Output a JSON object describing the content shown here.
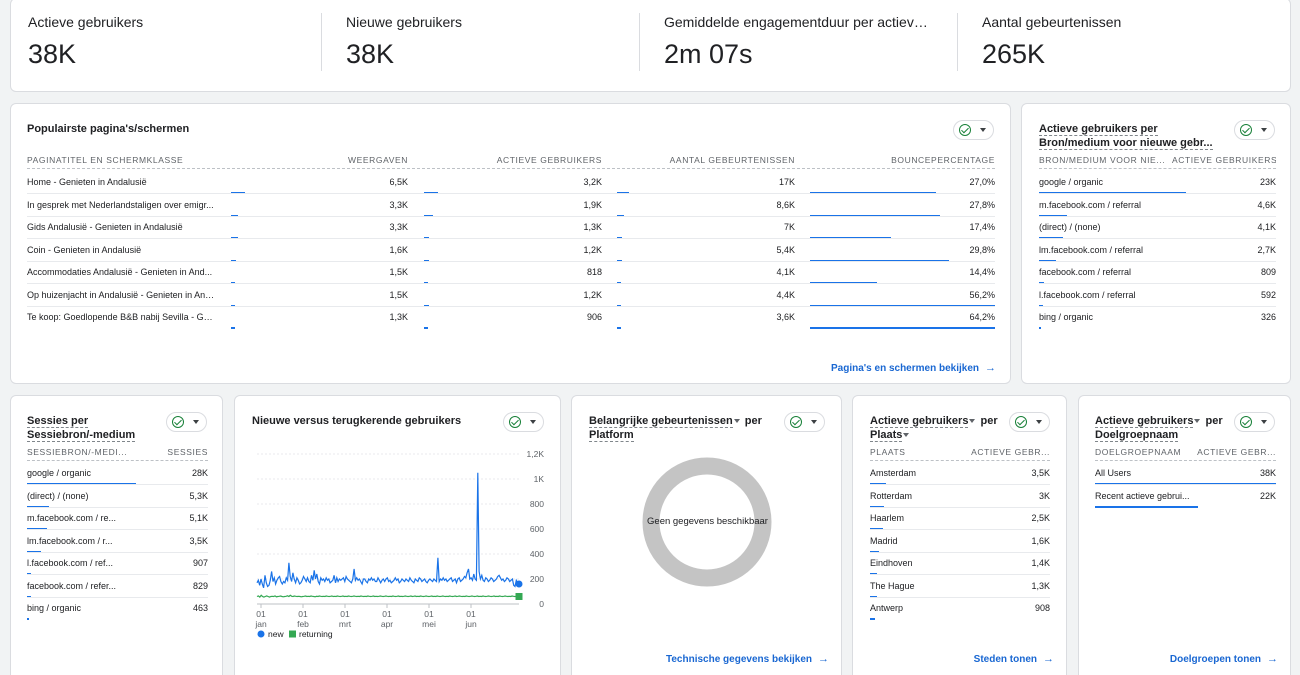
{
  "kpis": [
    {
      "label": "Actieve gebruikers",
      "value": "38K"
    },
    {
      "label": "Nieuwe gebruikers",
      "value": "38K"
    },
    {
      "label": "Gemiddelde engagementduur per actieve ge...",
      "value": "2m 07s"
    },
    {
      "label": "Aantal gebeurtenissen",
      "value": "265K"
    }
  ],
  "pages": {
    "title": "Populairste pagina's/schermen",
    "headers": [
      "PAGINATITEL EN SCHERMKLASSE",
      "WEERGAVEN",
      "ACTIEVE GEBRUIKERS",
      "AANTAL GEBEURTENISSEN",
      "BOUNCEPERCENTAGE"
    ],
    "rows": [
      {
        "title": "Home - Genieten in Andalusië",
        "views": "6,5K",
        "users": "3,2K",
        "events": "17K",
        "bounce": "27,0%",
        "b": [
          0.08,
          0.08,
          0.07,
          0.68
        ]
      },
      {
        "title": "In gesprek met Nederlandstaligen over emigr...",
        "views": "3,3K",
        "users": "1,9K",
        "events": "8,6K",
        "bounce": "27,8%",
        "b": [
          0.04,
          0.05,
          0.04,
          0.7
        ]
      },
      {
        "title": "Gids Andalusië - Genieten in Andalusië",
        "views": "3,3K",
        "users": "1,3K",
        "events": "7K",
        "bounce": "17,4%",
        "b": [
          0.04,
          0.03,
          0.03,
          0.44
        ]
      },
      {
        "title": "Coin - Genieten in Andalusië",
        "views": "1,6K",
        "users": "1,2K",
        "events": "5,4K",
        "bounce": "29,8%",
        "b": [
          0.03,
          0.03,
          0.03,
          0.75
        ]
      },
      {
        "title": "Accommodaties Andalusië - Genieten in And...",
        "views": "1,5K",
        "users": "818",
        "events": "4,1K",
        "bounce": "14,4%",
        "b": [
          0.02,
          0.02,
          0.02,
          0.36
        ]
      },
      {
        "title": "Op huizenjacht in Andalusië - Genieten in And...",
        "views": "1,5K",
        "users": "1,2K",
        "events": "4,4K",
        "bounce": "56,2%",
        "b": [
          0.02,
          0.03,
          0.02,
          1.0
        ]
      },
      {
        "title": "Te koop: Goedlopende B&B nabij Sevilla - Gen...",
        "views": "1,3K",
        "users": "906",
        "events": "3,6K",
        "bounce": "64,2%",
        "b": [
          0.02,
          0.02,
          0.02,
          1.0
        ]
      }
    ],
    "link": "Pagina's en schermen bekijken"
  },
  "source": {
    "title1": "Actieve gebruikers per",
    "title2": "Bron/medium voor nieuwe gebr...",
    "headers": [
      "BRON/MEDIUM VOOR NIE...",
      "ACTIEVE GEBRUIKERS"
    ],
    "rows": [
      {
        "name": "google / organic",
        "value": "23K",
        "b": 0.62
      },
      {
        "name": "m.facebook.com / referral",
        "value": "4,6K",
        "b": 0.12
      },
      {
        "name": "(direct) / (none)",
        "value": "4,1K",
        "b": 0.1
      },
      {
        "name": "lm.facebook.com / referral",
        "value": "2,7K",
        "b": 0.07
      },
      {
        "name": "facebook.com / referral",
        "value": "809",
        "b": 0.02
      },
      {
        "name": "l.facebook.com / referral",
        "value": "592",
        "b": 0.015
      },
      {
        "name": "bing / organic",
        "value": "326",
        "b": 0.01
      }
    ]
  },
  "sessions": {
    "title1": "Sessies per",
    "title2": "Sessiebron/-medium",
    "headers": [
      "SESSIEBRON/-MEDI...",
      "SESSIES"
    ],
    "rows": [
      {
        "name": "google / organic",
        "value": "28K",
        "b": 0.6
      },
      {
        "name": "(direct) / (none)",
        "value": "5,3K",
        "b": 0.12
      },
      {
        "name": "m.facebook.com / re...",
        "value": "5,1K",
        "b": 0.11
      },
      {
        "name": "lm.facebook.com / r...",
        "value": "3,5K",
        "b": 0.08
      },
      {
        "name": "l.facebook.com / ref...",
        "value": "907",
        "b": 0.02
      },
      {
        "name": "facebook.com / refer...",
        "value": "829",
        "b": 0.02
      },
      {
        "name": "bing / organic",
        "value": "463",
        "b": 0.01
      }
    ]
  },
  "chart_data": {
    "type": "line",
    "title": "Nieuwe versus terugkerende gebruikers",
    "x_ticks": [
      [
        "01",
        "jan"
      ],
      [
        "01",
        "feb"
      ],
      [
        "01",
        "mrt"
      ],
      [
        "01",
        "apr"
      ],
      [
        "01",
        "mei"
      ],
      [
        "01",
        "jun"
      ]
    ],
    "y_ticks": [
      "1,2K",
      "1K",
      "800",
      "600",
      "400",
      "200",
      "0"
    ],
    "ylim": [
      0,
      1200
    ],
    "series": [
      {
        "name": "new",
        "color": "#1a73e8",
        "values": [
          170,
          190,
          150,
          200,
          160,
          130,
          230,
          170,
          140,
          150,
          190,
          260,
          180,
          210,
          160,
          190,
          210,
          220,
          180,
          160,
          180,
          170,
          210,
          190,
          330,
          220,
          180,
          250,
          200,
          170,
          210,
          190,
          160,
          170,
          190,
          220,
          200,
          180,
          210,
          180,
          170,
          230,
          190,
          270,
          200,
          240,
          180,
          160,
          210,
          190,
          200,
          180,
          210,
          190,
          200,
          170,
          180,
          190,
          230,
          170,
          210,
          180,
          200,
          190,
          200,
          210,
          180,
          220,
          200,
          190,
          180,
          170,
          200,
          280,
          190,
          210,
          190,
          200,
          180,
          160,
          200,
          200,
          180,
          170,
          200,
          190,
          210,
          190,
          200,
          180,
          180,
          210,
          190,
          170,
          190,
          200,
          180,
          200,
          210,
          180,
          190,
          170,
          180,
          190,
          210,
          190,
          200,
          170,
          180,
          200,
          190,
          180,
          200,
          190,
          180,
          210,
          190,
          180,
          170,
          200,
          190,
          180,
          210,
          200,
          180,
          190,
          200,
          180,
          170,
          190,
          200,
          190,
          180,
          200,
          190,
          180,
          370,
          180,
          200,
          190,
          210,
          190,
          200,
          180,
          190,
          200,
          210,
          180,
          190,
          200,
          170,
          200,
          210,
          180,
          190,
          200,
          220,
          210,
          250,
          280,
          200,
          210,
          190,
          240,
          200,
          190,
          1050,
          260,
          200,
          230,
          190,
          180,
          210,
          200,
          180,
          190,
          210,
          200,
          180,
          190,
          200,
          220,
          230,
          210,
          190,
          200,
          180,
          190,
          210,
          200,
          180,
          190,
          200,
          150,
          140,
          190,
          170,
          160
        ]
      },
      {
        "name": "returning",
        "color": "#34a853",
        "values": [
          60,
          65,
          55,
          70,
          60,
          55,
          60,
          65,
          60,
          55,
          60,
          62,
          60,
          65,
          58,
          60,
          62,
          64,
          60,
          58,
          60,
          62,
          66,
          60,
          70,
          62,
          60,
          64,
          62,
          60,
          62,
          60,
          58,
          60,
          62,
          64,
          60,
          62,
          60,
          64,
          62,
          60,
          58,
          62,
          60,
          64,
          62,
          60,
          62,
          60,
          64,
          62,
          60,
          62,
          64,
          60,
          62,
          60,
          64,
          62,
          60,
          62,
          64,
          60,
          62,
          60,
          64,
          62,
          60,
          62,
          64,
          62,
          60,
          62,
          60,
          64,
          62,
          60,
          62,
          60,
          64,
          62,
          60,
          62,
          64,
          60,
          62,
          60,
          62,
          64,
          62,
          60,
          62,
          64,
          62,
          60,
          62,
          60,
          64,
          62,
          60,
          62,
          64,
          60,
          62,
          60,
          62,
          64,
          62,
          60,
          62,
          64,
          60,
          62,
          64,
          60,
          62,
          60,
          64,
          62,
          60,
          62,
          64,
          62,
          60,
          62,
          64,
          60,
          62,
          60,
          64,
          62,
          60,
          62,
          64,
          62,
          60,
          62,
          60,
          64,
          62,
          60,
          62,
          64,
          60,
          62,
          64,
          62,
          60,
          62,
          60,
          64,
          62,
          60,
          62,
          64,
          62,
          60,
          62,
          64,
          60,
          62,
          60,
          64,
          62,
          60,
          62,
          64,
          62,
          60,
          62,
          64,
          60,
          62,
          60,
          64,
          62,
          60,
          62,
          64,
          62,
          60,
          62,
          60,
          64,
          62,
          60,
          62,
          64,
          60
        ]
      }
    ]
  },
  "events": {
    "title": "Belangrijke gebeurtenissen",
    "title_rest": " per",
    "title2": "Platform",
    "empty": "Geen gegevens beschikbaar",
    "link": "Technische gegevens bekijken"
  },
  "places": {
    "title1a": "Actieve gebruikers",
    "title1b": " per",
    "title2": "Plaats",
    "headers": [
      "PLAATS",
      "ACTIEVE GEBR..."
    ],
    "rows": [
      {
        "name": "Amsterdam",
        "value": "3,5K",
        "b": 0.09
      },
      {
        "name": "Rotterdam",
        "value": "3K",
        "b": 0.08
      },
      {
        "name": "Haarlem",
        "value": "2,5K",
        "b": 0.07
      },
      {
        "name": "Madrid",
        "value": "1,6K",
        "b": 0.05
      },
      {
        "name": "Eindhoven",
        "value": "1,4K",
        "b": 0.04
      },
      {
        "name": "The Hague",
        "value": "1,3K",
        "b": 0.04
      },
      {
        "name": "Antwerp",
        "value": "908",
        "b": 0.03
      }
    ],
    "link": "Steden tonen"
  },
  "audiences": {
    "title1a": "Actieve gebruikers",
    "title1b": " per",
    "title2": "Doelgroepnaam",
    "headers": [
      "DOELGROEPNAAM",
      "ACTIEVE GEBR..."
    ],
    "rows": [
      {
        "name": "All Users",
        "value": "38K",
        "b": 1.0
      },
      {
        "name": "Recent actieve gebrui...",
        "value": "22K",
        "b": 0.57
      }
    ],
    "link": "Doelgroepen tonen"
  }
}
